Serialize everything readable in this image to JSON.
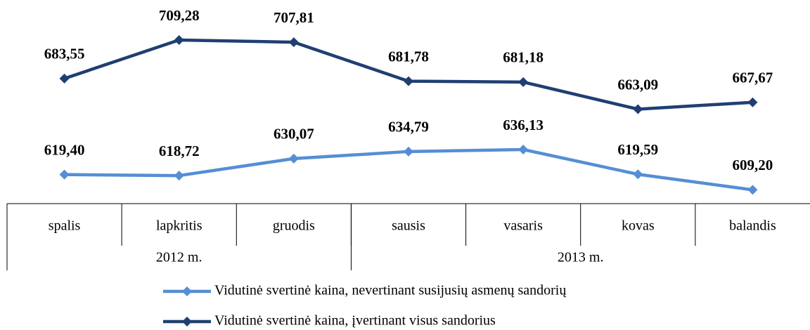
{
  "chart_data": {
    "type": "line",
    "categories": [
      "spalis",
      "lapkritis",
      "gruodis",
      "sausis",
      "vasaris",
      "kovas",
      "balandis"
    ],
    "groups": [
      {
        "label": "2012 m.",
        "span": 3
      },
      {
        "label": "2013 m.",
        "span": 4
      }
    ],
    "series": [
      {
        "name": "Vidutinė svertinė kaina, nevertinant susijusių asmenų sandorių",
        "color": "#558ed5",
        "values": [
          619.4,
          618.72,
          630.07,
          634.79,
          636.13,
          619.59,
          609.2
        ],
        "value_labels": [
          "619,40",
          "618,72",
          "630,07",
          "634,79",
          "636,13",
          "619,59",
          "609,20"
        ]
      },
      {
        "name": "Vidutinė svertinė kaina, įvertinant visus sandorius",
        "color": "#1f3f73",
        "values": [
          683.55,
          709.28,
          707.81,
          681.78,
          681.18,
          663.09,
          667.67
        ],
        "value_labels": [
          "683,55",
          "709,28",
          "707,81",
          "681,78",
          "681,18",
          "663,09",
          "667,67"
        ]
      }
    ],
    "ylim": [
      600,
      736
    ]
  }
}
